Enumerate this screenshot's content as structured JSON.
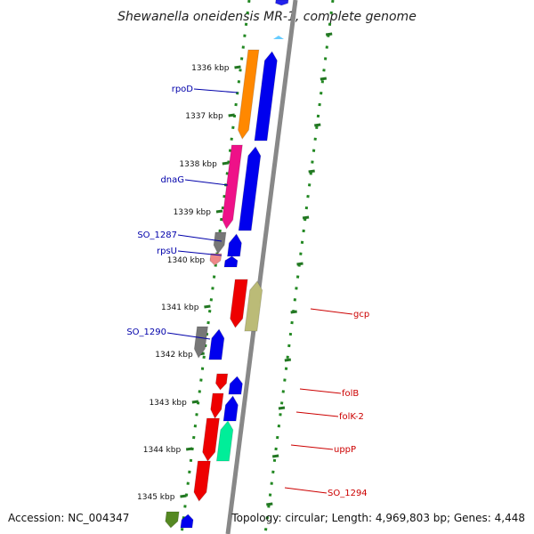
{
  "title": "Shewanella oneidensis MR-1, complete genome",
  "footer": {
    "accession": "Accession: NC_004347",
    "topology": "Topology: circular; Length: 4,969,803 bp; Genes: 4,448"
  },
  "colors": {
    "backbone": "#888888",
    "forward": "#0000ee",
    "reverse": "#ee0000",
    "label_left": "#0000aa",
    "label_right": "#cc0000",
    "tick": "#227722",
    "dots": "#228822"
  },
  "ticks": [
    {
      "label": "1336 kbp"
    },
    {
      "label": "1337 kbp"
    },
    {
      "label": "1338 kbp"
    },
    {
      "label": "1339 kbp"
    },
    {
      "label": "1340 kbp"
    },
    {
      "label": "1341 kbp"
    },
    {
      "label": "1342 kbp"
    },
    {
      "label": "1343 kbp"
    },
    {
      "label": "1344 kbp"
    },
    {
      "label": "1345 kbp"
    }
  ],
  "gene_labels": [
    {
      "name": "rpoD"
    },
    {
      "name": "dnaG"
    },
    {
      "name": "SO_1287"
    },
    {
      "name": "rpsU"
    },
    {
      "name": "SO_1290"
    },
    {
      "name": "gcp"
    },
    {
      "name": "folB"
    },
    {
      "name": "folK-2"
    },
    {
      "name": "uppP"
    },
    {
      "name": "SO_1294"
    }
  ]
}
